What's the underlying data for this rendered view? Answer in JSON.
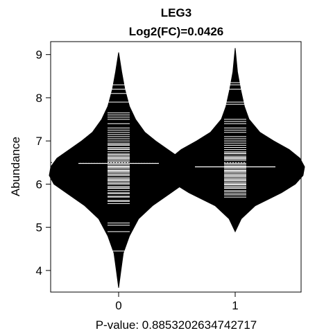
{
  "chart_data": {
    "type": "beanplot",
    "title": "LEG3",
    "subtitle": "Log2(FC)=0.0426",
    "ylabel": "Abundance",
    "xlabel": "P-value: 0.8853202634742717",
    "categories": [
      "0",
      "1"
    ],
    "ylim": [
      3.5,
      9.3
    ],
    "yticks": [
      4,
      5,
      6,
      7,
      8,
      9
    ],
    "overall_mean": 6.5,
    "groups": [
      {
        "category": "0",
        "mean": 6.48,
        "range": [
          3.6,
          9.05
        ],
        "density": [
          [
            3.6,
            0.0
          ],
          [
            4.0,
            0.015
          ],
          [
            4.4,
            0.03
          ],
          [
            4.8,
            0.07
          ],
          [
            5.2,
            0.13
          ],
          [
            5.5,
            0.22
          ],
          [
            5.8,
            0.34
          ],
          [
            6.0,
            0.42
          ],
          [
            6.2,
            0.45
          ],
          [
            6.4,
            0.44
          ],
          [
            6.6,
            0.4
          ],
          [
            6.8,
            0.32
          ],
          [
            7.0,
            0.24
          ],
          [
            7.2,
            0.17
          ],
          [
            7.5,
            0.11
          ],
          [
            7.8,
            0.07
          ],
          [
            8.2,
            0.04
          ],
          [
            8.6,
            0.02
          ],
          [
            9.05,
            0.0
          ]
        ],
        "values": [
          4.45,
          4.9,
          5.05,
          5.1,
          5.55,
          5.6,
          5.62,
          5.7,
          5.72,
          5.78,
          5.8,
          5.85,
          5.9,
          5.92,
          5.95,
          6.0,
          6.02,
          6.05,
          6.08,
          6.1,
          6.12,
          6.15,
          6.2,
          6.22,
          6.25,
          6.28,
          6.3,
          6.32,
          6.35,
          6.38,
          6.4,
          6.42,
          6.45,
          6.5,
          6.52,
          6.55,
          6.58,
          6.6,
          6.62,
          6.65,
          6.68,
          6.7,
          6.75,
          6.8,
          6.82,
          6.85,
          6.9,
          6.92,
          6.95,
          7.0,
          7.05,
          7.1,
          7.15,
          7.2,
          7.25,
          7.3,
          7.4,
          7.5,
          7.55,
          7.6,
          7.65,
          7.9,
          8.1,
          8.2,
          8.3
        ]
      },
      {
        "category": "1",
        "mean": 6.4,
        "range": [
          4.9,
          9.15
        ],
        "density": [
          [
            4.9,
            0.0
          ],
          [
            5.2,
            0.04
          ],
          [
            5.5,
            0.13
          ],
          [
            5.8,
            0.3
          ],
          [
            6.0,
            0.39
          ],
          [
            6.2,
            0.44
          ],
          [
            6.4,
            0.45
          ],
          [
            6.6,
            0.42
          ],
          [
            6.8,
            0.35
          ],
          [
            7.0,
            0.25
          ],
          [
            7.2,
            0.16
          ],
          [
            7.5,
            0.09
          ],
          [
            7.8,
            0.06
          ],
          [
            8.2,
            0.035
          ],
          [
            8.6,
            0.015
          ],
          [
            9.15,
            0.0
          ]
        ],
        "values": [
          5.7,
          5.75,
          5.78,
          5.82,
          5.85,
          5.9,
          5.92,
          5.95,
          5.98,
          6.0,
          6.02,
          6.05,
          6.08,
          6.1,
          6.12,
          6.15,
          6.18,
          6.2,
          6.22,
          6.25,
          6.28,
          6.3,
          6.32,
          6.35,
          6.38,
          6.42,
          6.45,
          6.48,
          6.5,
          6.55,
          6.58,
          6.6,
          6.62,
          6.65,
          6.7,
          6.72,
          6.75,
          6.8,
          6.85,
          6.9,
          6.95,
          7.0,
          7.05,
          7.1,
          7.2,
          7.25,
          7.3,
          7.4,
          7.45,
          7.5,
          7.85,
          7.9,
          8.2,
          8.3,
          8.35
        ]
      }
    ],
    "grid": false,
    "legend": "none"
  }
}
